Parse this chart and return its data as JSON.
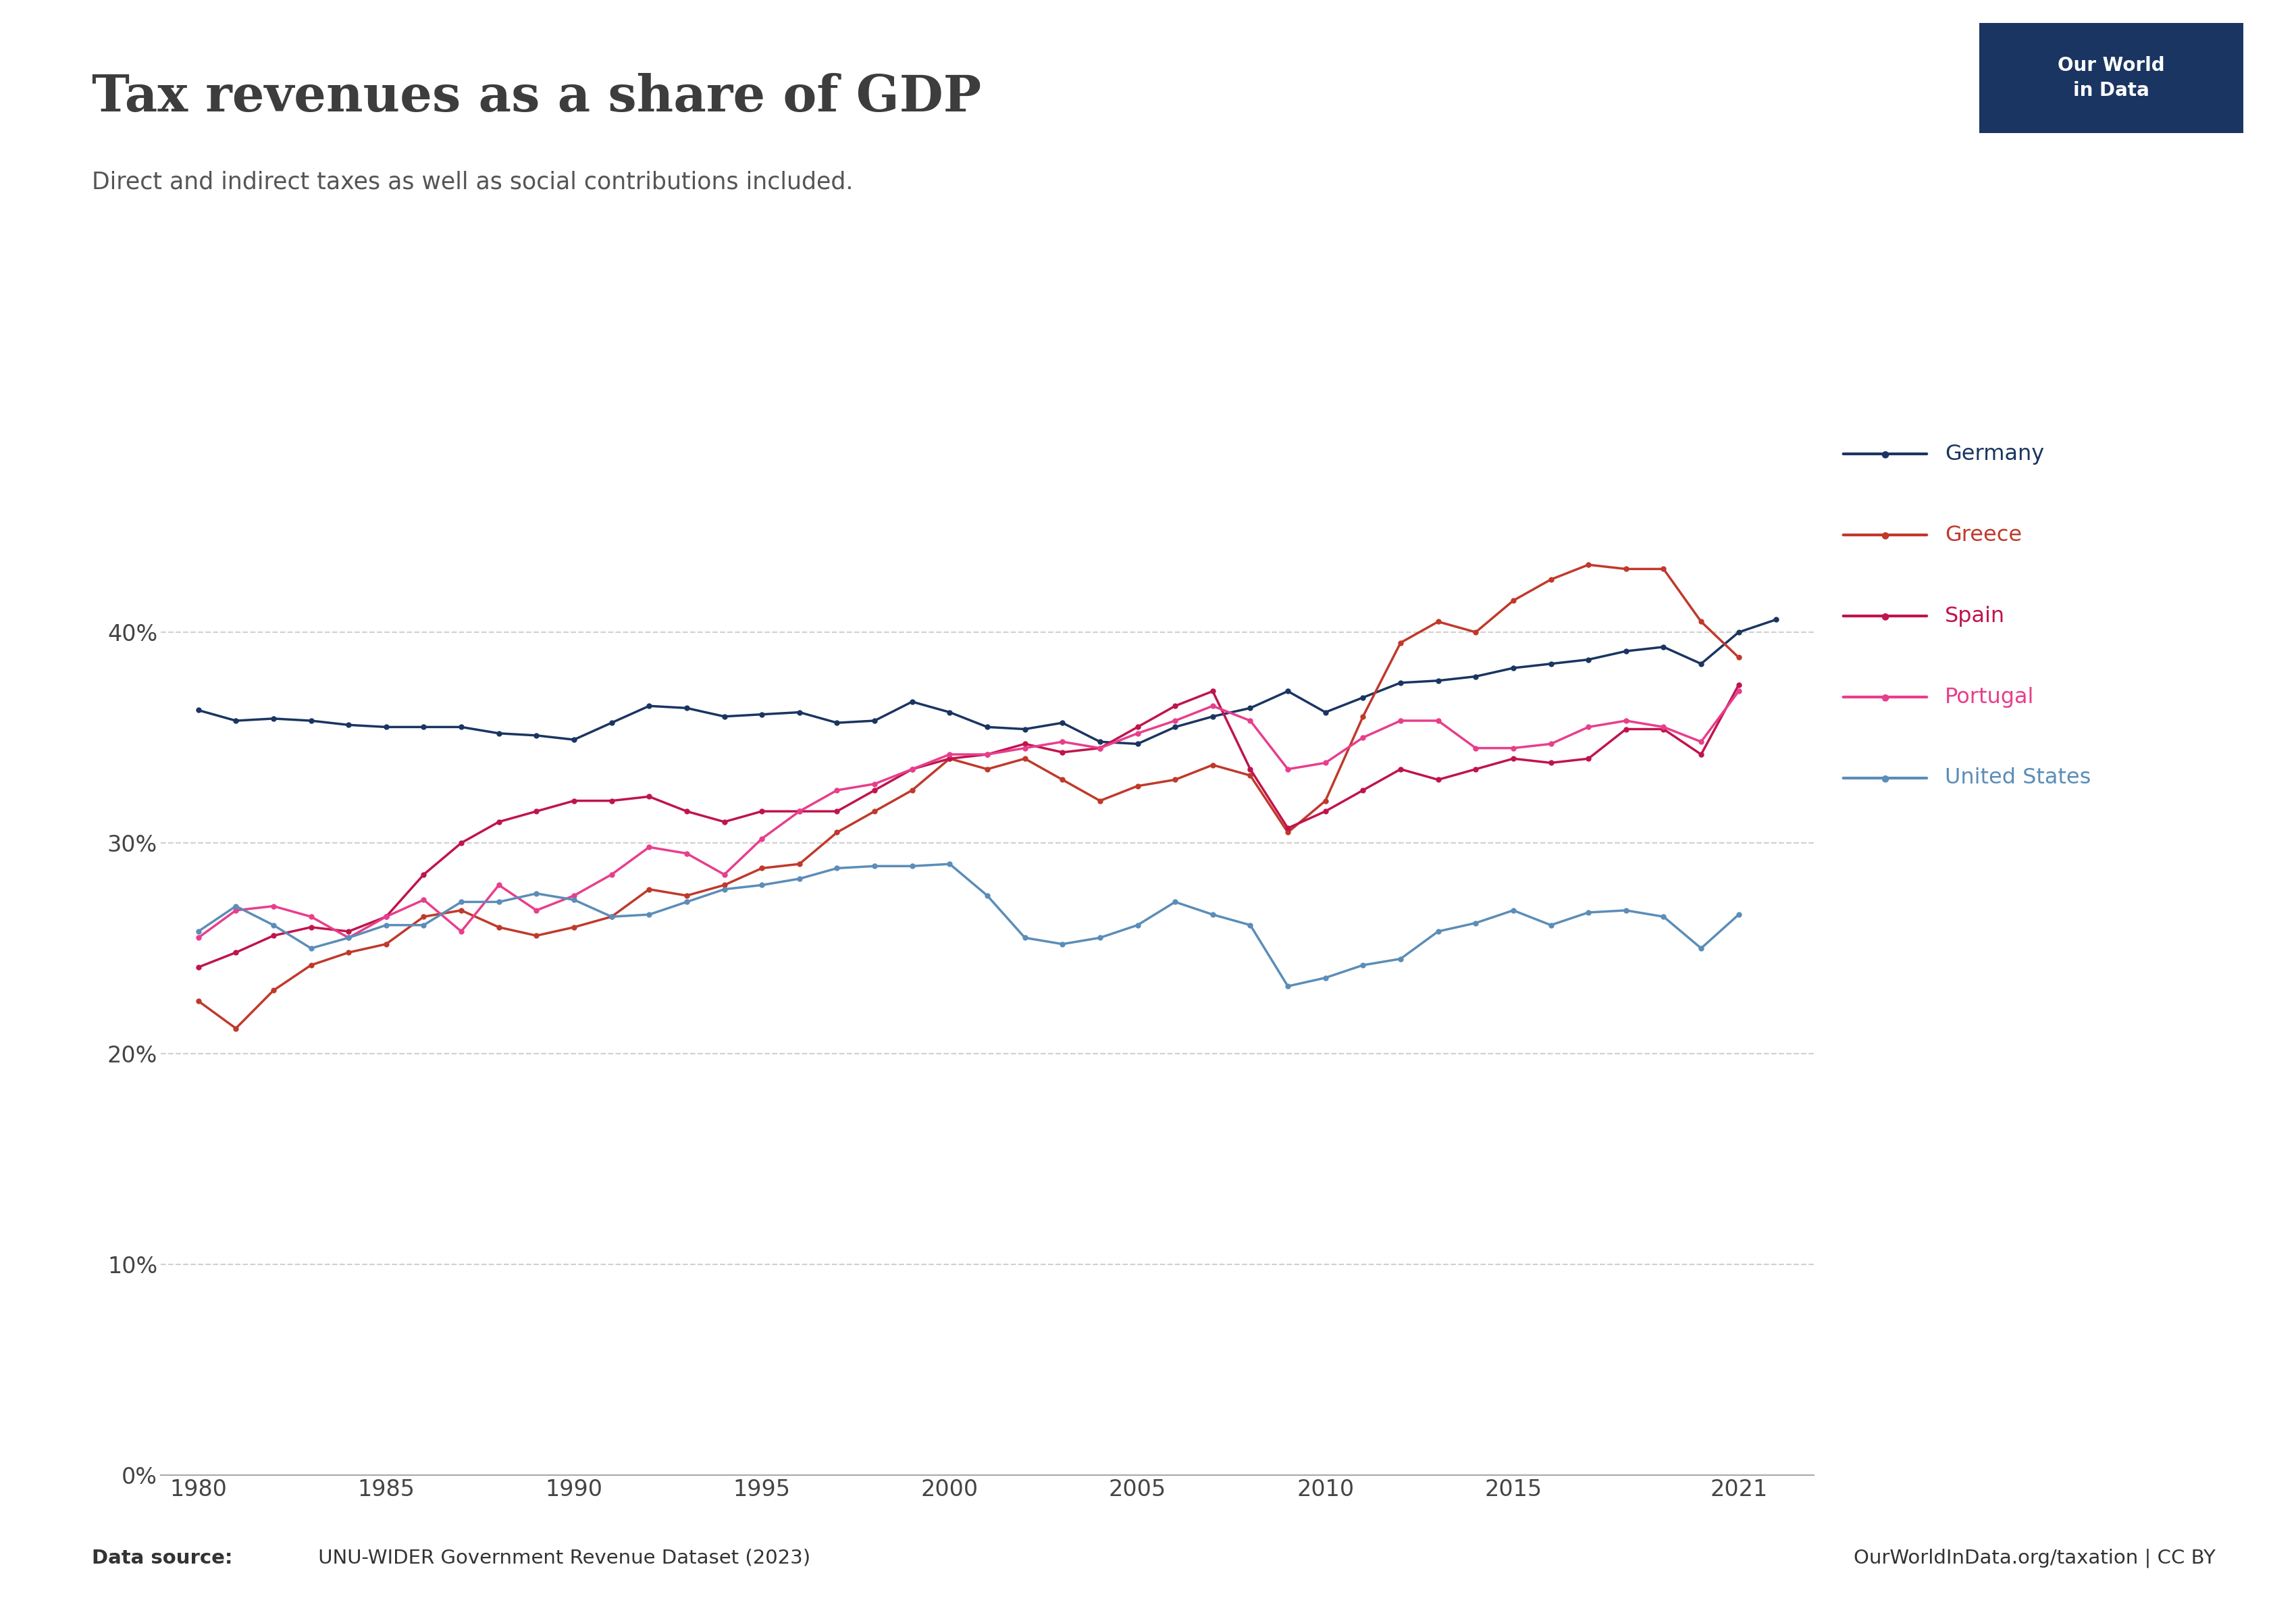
{
  "title": "Tax revenues as a share of GDP",
  "subtitle": "Direct and indirect taxes as well as social contributions included.",
  "datasource_bold": "Data source:",
  "datasource_rest": " UNU-WIDER Government Revenue Dataset (2023)",
  "website": "OurWorldInData.org/taxation | CC BY",
  "background_color": "#ffffff",
  "title_color": "#3d3d3d",
  "subtitle_color": "#555555",
  "logo_bg": "#1a3561",
  "logo_text": "Our World\nin Data",
  "series": {
    "Germany": {
      "color": "#1a3561",
      "years": [
        1980,
        1981,
        1982,
        1983,
        1984,
        1985,
        1986,
        1987,
        1988,
        1989,
        1990,
        1991,
        1992,
        1993,
        1994,
        1995,
        1996,
        1997,
        1998,
        1999,
        2000,
        2001,
        2002,
        2003,
        2004,
        2005,
        2006,
        2007,
        2008,
        2009,
        2010,
        2011,
        2012,
        2013,
        2014,
        2015,
        2016,
        2017,
        2018,
        2019,
        2020,
        2021,
        2022
      ],
      "values": [
        36.3,
        35.8,
        35.9,
        35.8,
        35.6,
        35.5,
        35.5,
        35.5,
        35.2,
        35.1,
        34.9,
        35.7,
        36.5,
        36.4,
        36.0,
        36.1,
        36.2,
        35.7,
        35.8,
        36.7,
        36.2,
        35.5,
        35.4,
        35.7,
        34.8,
        34.7,
        35.5,
        36.0,
        36.4,
        37.2,
        36.2,
        36.9,
        37.6,
        37.7,
        37.9,
        38.3,
        38.5,
        38.7,
        39.1,
        39.3,
        38.5,
        40.0,
        40.6
      ]
    },
    "Greece": {
      "color": "#c0392b",
      "years": [
        1980,
        1981,
        1982,
        1983,
        1984,
        1985,
        1986,
        1987,
        1988,
        1989,
        1990,
        1991,
        1992,
        1993,
        1994,
        1995,
        1996,
        1997,
        1998,
        1999,
        2000,
        2001,
        2002,
        2003,
        2004,
        2005,
        2006,
        2007,
        2008,
        2009,
        2010,
        2011,
        2012,
        2013,
        2014,
        2015,
        2016,
        2017,
        2018,
        2019,
        2020,
        2021
      ],
      "values": [
        22.5,
        21.2,
        23.0,
        24.2,
        24.8,
        25.2,
        26.5,
        26.8,
        26.0,
        25.6,
        26.0,
        26.5,
        27.8,
        27.5,
        28.0,
        28.8,
        29.0,
        30.5,
        31.5,
        32.5,
        34.0,
        33.5,
        34.0,
        33.0,
        32.0,
        32.7,
        33.0,
        33.7,
        33.2,
        30.5,
        32.0,
        36.0,
        39.5,
        40.5,
        40.0,
        41.5,
        42.5,
        43.2,
        43.0,
        43.0,
        40.5,
        38.8
      ]
    },
    "Spain": {
      "color": "#c0144c",
      "years": [
        1980,
        1981,
        1982,
        1983,
        1984,
        1985,
        1986,
        1987,
        1988,
        1989,
        1990,
        1991,
        1992,
        1993,
        1994,
        1995,
        1996,
        1997,
        1998,
        1999,
        2000,
        2001,
        2002,
        2003,
        2004,
        2005,
        2006,
        2007,
        2008,
        2009,
        2010,
        2011,
        2012,
        2013,
        2014,
        2015,
        2016,
        2017,
        2018,
        2019,
        2020,
        2021
      ],
      "values": [
        24.1,
        24.8,
        25.6,
        26.0,
        25.8,
        26.5,
        28.5,
        30.0,
        31.0,
        31.5,
        32.0,
        32.0,
        32.2,
        31.5,
        31.0,
        31.5,
        31.5,
        31.5,
        32.5,
        33.5,
        34.0,
        34.2,
        34.7,
        34.3,
        34.5,
        35.5,
        36.5,
        37.2,
        33.5,
        30.7,
        31.5,
        32.5,
        33.5,
        33.0,
        33.5,
        34.0,
        33.8,
        34.0,
        35.4,
        35.4,
        34.2,
        37.5
      ]
    },
    "Portugal": {
      "color": "#e83e8c",
      "years": [
        1980,
        1981,
        1982,
        1983,
        1984,
        1985,
        1986,
        1987,
        1988,
        1989,
        1990,
        1991,
        1992,
        1993,
        1994,
        1995,
        1996,
        1997,
        1998,
        1999,
        2000,
        2001,
        2002,
        2003,
        2004,
        2005,
        2006,
        2007,
        2008,
        2009,
        2010,
        2011,
        2012,
        2013,
        2014,
        2015,
        2016,
        2017,
        2018,
        2019,
        2020,
        2021
      ],
      "values": [
        25.5,
        26.8,
        27.0,
        26.5,
        25.5,
        26.5,
        27.3,
        25.8,
        28.0,
        26.8,
        27.5,
        28.5,
        29.8,
        29.5,
        28.5,
        30.2,
        31.5,
        32.5,
        32.8,
        33.5,
        34.2,
        34.2,
        34.5,
        34.8,
        34.5,
        35.2,
        35.8,
        36.5,
        35.8,
        33.5,
        33.8,
        35.0,
        35.8,
        35.8,
        34.5,
        34.5,
        34.7,
        35.5,
        35.8,
        35.5,
        34.8,
        37.2
      ]
    },
    "United States": {
      "color": "#5b8db8",
      "years": [
        1980,
        1981,
        1982,
        1983,
        1984,
        1985,
        1986,
        1987,
        1988,
        1989,
        1990,
        1991,
        1992,
        1993,
        1994,
        1995,
        1996,
        1997,
        1998,
        1999,
        2000,
        2001,
        2002,
        2003,
        2004,
        2005,
        2006,
        2007,
        2008,
        2009,
        2010,
        2011,
        2012,
        2013,
        2014,
        2015,
        2016,
        2017,
        2018,
        2019,
        2020,
        2021
      ],
      "values": [
        25.8,
        27.0,
        26.1,
        25.0,
        25.5,
        26.1,
        26.1,
        27.2,
        27.2,
        27.6,
        27.3,
        26.5,
        26.6,
        27.2,
        27.8,
        28.0,
        28.3,
        28.8,
        28.9,
        28.9,
        29.0,
        27.5,
        25.5,
        25.2,
        25.5,
        26.1,
        27.2,
        26.6,
        26.1,
        23.2,
        23.6,
        24.2,
        24.5,
        25.8,
        26.2,
        26.8,
        26.1,
        26.7,
        26.8,
        26.5,
        25.0,
        26.6
      ]
    }
  },
  "legend_order": [
    "Germany",
    "Greece",
    "Spain",
    "Portugal",
    "United States"
  ],
  "legend_colors": {
    "Germany": "#1a3561",
    "Greece": "#c0392b",
    "Spain": "#c0144c",
    "Portugal": "#e83e8c",
    "United States": "#5b8db8"
  },
  "xmin": 1979,
  "xmax": 2023,
  "ymin": 0,
  "ymax": 50,
  "yticks": [
    0,
    10,
    20,
    30,
    40
  ],
  "ytick_labels": [
    "0%",
    "10%",
    "20%",
    "30%",
    "40%"
  ],
  "xticks": [
    1980,
    1985,
    1990,
    1995,
    2000,
    2005,
    2010,
    2015,
    2021
  ],
  "grid_color": "#d0d0d0",
  "axis_color": "#aaaaaa"
}
